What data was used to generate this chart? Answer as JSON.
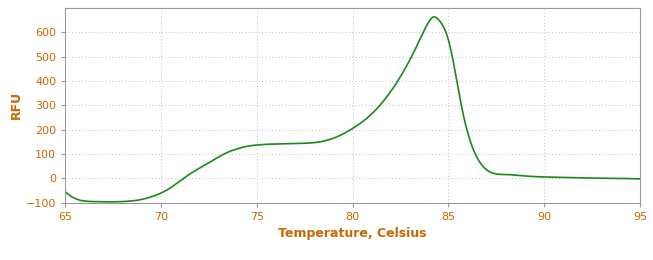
{
  "title": "",
  "xlabel": "Temperature, Celsius",
  "ylabel": "RFU",
  "xlim": [
    65,
    95
  ],
  "ylim": [
    -100,
    700
  ],
  "xticks": [
    65,
    70,
    75,
    80,
    85,
    90,
    95
  ],
  "yticks": [
    -100,
    0,
    100,
    200,
    300,
    400,
    500,
    600
  ],
  "line_color": "#1a8a1a",
  "background_color": "#ffffff",
  "grid_color": "#aaaaaa",
  "label_color": "#cc6600",
  "spine_color": "#999999",
  "curve_points": {
    "x": [
      65.0,
      65.4,
      65.8,
      66.5,
      67.0,
      67.5,
      68.0,
      68.5,
      69.0,
      69.5,
      70.0,
      70.5,
      71.0,
      71.5,
      72.0,
      72.5,
      73.0,
      73.5,
      74.0,
      74.5,
      75.0,
      75.5,
      76.0,
      77.0,
      78.0,
      79.0,
      80.0,
      81.0,
      82.0,
      83.0,
      83.5,
      84.0,
      84.2,
      84.5,
      85.0,
      85.3,
      85.6,
      86.0,
      86.5,
      87.0,
      88.0,
      89.0,
      90.0,
      91.0,
      92.0,
      93.0,
      94.0,
      95.0
    ],
    "y": [
      -55,
      -78,
      -90,
      -95,
      -96,
      -96,
      -95,
      -92,
      -86,
      -75,
      -60,
      -38,
      -10,
      18,
      42,
      65,
      88,
      108,
      122,
      132,
      137,
      140,
      141,
      143,
      147,
      165,
      205,
      265,
      358,
      488,
      568,
      645,
      662,
      650,
      568,
      460,
      330,
      190,
      85,
      35,
      16,
      10,
      6,
      4,
      2,
      1,
      0,
      -2
    ]
  }
}
